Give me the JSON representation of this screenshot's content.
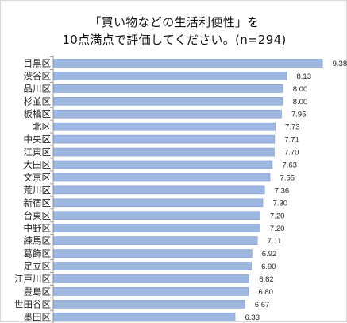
{
  "chart_data": {
    "type": "bar",
    "orientation": "horizontal",
    "title_lines": [
      "「買い物などの生活利便性」を",
      "10点満点で評価してください。(n=294)"
    ],
    "categories": [
      "目黒区",
      "渋谷区",
      "品川区",
      "杉並区",
      "板橋区",
      "北区",
      "中央区",
      "江東区",
      "大田区",
      "文京区",
      "荒川区",
      "新宿区",
      "台東区",
      "中野区",
      "練馬区",
      "葛飾区",
      "足立区",
      "江戸川区",
      "豊島区",
      "世田谷区",
      "墨田区"
    ],
    "values": [
      9.38,
      8.13,
      8.0,
      8.0,
      7.95,
      7.73,
      7.71,
      7.7,
      7.63,
      7.55,
      7.36,
      7.3,
      7.2,
      7.2,
      7.11,
      6.92,
      6.9,
      6.82,
      6.8,
      6.67,
      6.33
    ],
    "value_labels": [
      "9.38",
      "8.13",
      "8.00",
      "8.00",
      "7.95",
      "7.73",
      "7.71",
      "7.70",
      "7.63",
      "7.55",
      "7.36",
      "7.30",
      "7.20",
      "7.20",
      "7.11",
      "6.92",
      "6.90",
      "6.82",
      "6.80",
      "6.67",
      "6.33"
    ],
    "xlim": [
      0,
      10
    ],
    "grid": false,
    "bar_color": "#9db7e0",
    "bar_edge_color": "#7f9cc8"
  }
}
